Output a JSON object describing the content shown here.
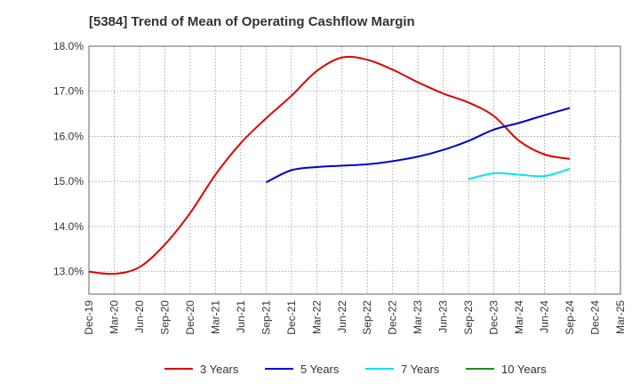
{
  "chart_data": {
    "type": "line",
    "title": "[5384]  Trend of Mean of Operating Cashflow Margin",
    "xlabel": "",
    "ylabel": "",
    "ylim": [
      12.5,
      18.0
    ],
    "yticks": [
      "13.0%",
      "14.0%",
      "15.0%",
      "16.0%",
      "17.0%",
      "18.0%"
    ],
    "ytick_values": [
      13.0,
      14.0,
      15.0,
      16.0,
      17.0,
      18.0
    ],
    "categories": [
      "Dec-19",
      "Mar-20",
      "Jun-20",
      "Sep-20",
      "Dec-20",
      "Mar-21",
      "Jun-21",
      "Sep-21",
      "Dec-21",
      "Mar-22",
      "Jun-22",
      "Sep-22",
      "Dec-22",
      "Mar-23",
      "Jun-23",
      "Sep-23",
      "Dec-23",
      "Mar-24",
      "Jun-24",
      "Sep-24",
      "Dec-24",
      "Mar-25"
    ],
    "grid": "vertical and horizontal dotted",
    "legend_position": "bottom",
    "series": [
      {
        "name": "3 Years",
        "color": "#dd0000",
        "values": [
          13.0,
          12.95,
          13.1,
          13.6,
          14.3,
          15.15,
          15.85,
          16.4,
          16.9,
          17.45,
          17.75,
          17.7,
          17.48,
          17.2,
          16.95,
          16.75,
          16.45,
          15.9,
          15.6,
          15.5,
          null,
          null
        ]
      },
      {
        "name": "5 Years",
        "color": "#0000cc",
        "values": [
          null,
          null,
          null,
          null,
          null,
          null,
          null,
          14.98,
          15.25,
          15.32,
          15.35,
          15.38,
          15.45,
          15.55,
          15.7,
          15.9,
          16.15,
          16.3,
          16.47,
          16.63,
          null,
          null
        ]
      },
      {
        "name": "7 Years",
        "color": "#00e5ee",
        "values": [
          null,
          null,
          null,
          null,
          null,
          null,
          null,
          null,
          null,
          null,
          null,
          null,
          null,
          null,
          null,
          15.05,
          15.18,
          15.15,
          15.12,
          15.28,
          null,
          null
        ]
      },
      {
        "name": "10 Years",
        "color": "#228b22",
        "values": [
          null,
          null,
          null,
          null,
          null,
          null,
          null,
          null,
          null,
          null,
          null,
          null,
          null,
          null,
          null,
          null,
          null,
          null,
          null,
          null,
          null,
          null
        ]
      }
    ]
  }
}
